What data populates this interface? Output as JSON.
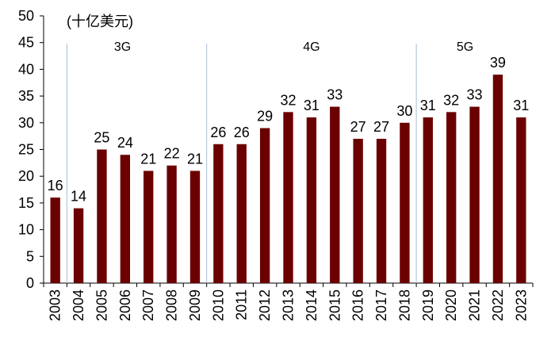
{
  "chart_data": {
    "type": "bar",
    "unit_label": "(十亿美元)",
    "categories": [
      "2003",
      "2004",
      "2005",
      "2006",
      "2007",
      "2008",
      "2009",
      "2010",
      "2011",
      "2012",
      "2013",
      "2014",
      "2015",
      "2016",
      "2017",
      "2018",
      "2019",
      "2020",
      "2021",
      "2022",
      "2023"
    ],
    "values": [
      16,
      14,
      25,
      24,
      21,
      22,
      21,
      26,
      26,
      29,
      32,
      31,
      33,
      27,
      27,
      30,
      31,
      32,
      33,
      39,
      31
    ],
    "ylim": [
      0,
      50
    ],
    "yticks": [
      0,
      5,
      10,
      15,
      20,
      25,
      30,
      35,
      40,
      45,
      50
    ],
    "grid": false,
    "bar_color": "#6b0000",
    "separator_color": "#a9bfd6",
    "eras": [
      {
        "label": "3G",
        "after_category_index": 0
      },
      {
        "label": "4G",
        "after_category_index": 6
      },
      {
        "label": "5G",
        "after_category_index": 15
      }
    ]
  }
}
